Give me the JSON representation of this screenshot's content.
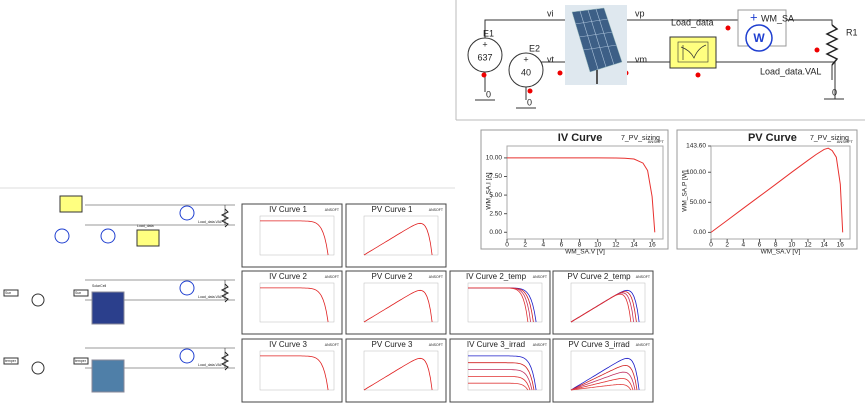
{
  "top_circuit": {
    "source_1": {
      "name": "E1",
      "value": "637"
    },
    "source_2": {
      "name": "E2",
      "value": "40"
    },
    "nets": [
      "vi",
      "vt",
      "vp",
      "vm"
    ],
    "load_block": "Load_data",
    "meter": {
      "name": "WM_SA",
      "symbol": "W"
    },
    "resistor": "R1",
    "load_value": "Load_data.VAL",
    "ground": "0"
  },
  "charts": [
    {
      "type": "line",
      "title": "IV Curve",
      "project": "7_PV_sizing",
      "x_label": "WM_SA.V [V]",
      "y_label": "WM_SA.I [A]",
      "xlim": [
        0,
        17.2
      ],
      "xticks": [
        0,
        2,
        4,
        6,
        8,
        10,
        12,
        14,
        16
      ],
      "ylim": [
        -0.5,
        11.6
      ],
      "yticks": [
        {
          "value": 0,
          "label": "0.00"
        },
        {
          "value": 2.5,
          "label": "2.50"
        },
        {
          "value": 5,
          "label": "5.00"
        },
        {
          "value": 7.5,
          "label": "7.50"
        },
        {
          "value": 10,
          "label": "10.00"
        }
      ],
      "color": "#e8312f",
      "x": [
        0,
        2,
        4,
        6,
        8,
        10,
        12,
        13,
        14,
        15,
        15.5,
        16,
        16.3
      ],
      "y": [
        10,
        10,
        10,
        10,
        10,
        10,
        9.98,
        9.95,
        9.85,
        9.3,
        8.3,
        4.8,
        0
      ]
    },
    {
      "type": "line",
      "title": "PV Curve",
      "project": "7_PV_sizing",
      "x_label": "WM_SA.V [V]",
      "y_label": "WM_SA.P [W]",
      "xlim": [
        0,
        17.2
      ],
      "xticks": [
        0,
        2,
        4,
        6,
        8,
        10,
        12,
        14,
        16
      ],
      "ylim": [
        -6,
        143.6
      ],
      "yticks": [
        {
          "value": 0,
          "label": "0.00"
        },
        {
          "value": 50,
          "label": "50.00"
        },
        {
          "value": 100,
          "label": "100.00"
        },
        {
          "value": 143.6,
          "label": "143.60"
        }
      ],
      "color": "#e8312f",
      "x": [
        0,
        2,
        4,
        6,
        8,
        10,
        12,
        13,
        14,
        14.5,
        15,
        15.5,
        16,
        16.3
      ],
      "y": [
        0,
        20,
        40,
        60,
        80,
        100,
        119.8,
        129.4,
        138,
        140,
        136,
        125,
        80,
        0
      ]
    }
  ],
  "brand": "ANSOFT",
  "small_charts": [
    "IV Curve 1",
    "PV Curve 1",
    "IV Curve 2",
    "PV Curve 2",
    "IV Curve 2_temp",
    "PV Curve 2_temp",
    "IV Curve 3",
    "PV Curve 3",
    "IV Curve 3_irrad",
    "PV Curve 3_irrad"
  ],
  "small_circuits": {
    "load": "Load_data",
    "load_value": "Load_data.VAL",
    "sun": "Sun",
    "temper": "temper",
    "cell": "SolarCell"
  }
}
